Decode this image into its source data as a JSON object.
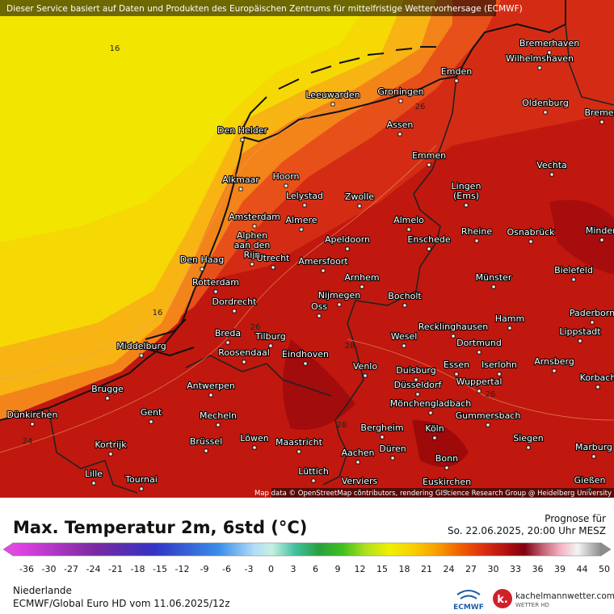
{
  "header": {
    "notice": "Dieser Service basiert auf Daten und Produkten des Europäischen Zentrums für mittelfristige Wettervorhersage (ECMWF)"
  },
  "map": {
    "cities": [
      "Bremerhaven",
      "Wilhelmshaven",
      "Emden",
      "Leeuwarden",
      "Groningen",
      "Oldenburg",
      "Bremen",
      "Assen",
      "Den Helder",
      "Emmen",
      "Vechta",
      "Alkmaar",
      "Hoorn",
      [
        "Lingen",
        "(Ems)"
      ],
      "Lelystad",
      "Zwolle",
      "Amsterdam",
      "Almere",
      "Almelo",
      "Rheine",
      "Osnabrück",
      "Minden",
      [
        "Alphen",
        "aan den",
        "Rijn"
      ],
      "Apeldoorn",
      "Enschede",
      "Den Haag",
      "Utrecht",
      "Amersfoort",
      "Bielefeld",
      "Arnhem",
      "Münster",
      "Rotterdam",
      "Nijmegen",
      "Bocholt",
      "Dordrecht",
      "Oss",
      "Hamm",
      "Paderborn",
      "Recklinghausen",
      "Breda",
      "Tilburg",
      "Wesel",
      "Lippstadt",
      "Middelburg",
      "Eindhoven",
      "Dortmund",
      "Roosendaal",
      "Venlo",
      "Essen",
      "Iserlohn",
      "Arnsberg",
      "Duisburg",
      "Korbach",
      "Antwerpen",
      "Wuppertal",
      "Düsseldorf",
      "Brugge",
      "Mönchengladbach",
      "Gent",
      "Mecheln",
      "Gummersbach",
      "Dünkirchen",
      "Bergheim",
      "Köln",
      "Brüssel",
      "Löwen",
      "Maastricht",
      "Siegen",
      "Kortrijk",
      "Düren",
      "Marburg",
      "Aachen",
      "Bonn",
      "Lille",
      "Tournai",
      "Lüttich",
      "Gießen",
      "Verviers",
      "Euskirchen"
    ],
    "contour_labels": [
      "16",
      "16",
      "24",
      "26",
      "26",
      "28",
      "26",
      "28"
    ],
    "attribution": "Map data © OpenStreetMap contributors, rendering GIScience Research Group @ Heidelberg University"
  },
  "legend": {
    "title": "Max. Temperatur 2m, 6std (°C)",
    "forecast_label": "Prognose für",
    "forecast_time": "So. 22.06.2025, 20:00 Uhr MESZ",
    "ticks": [
      -36,
      -30,
      -27,
      -24,
      -21,
      -18,
      -15,
      -12,
      -9,
      -6,
      -3,
      0,
      3,
      6,
      9,
      12,
      15,
      18,
      21,
      24,
      27,
      30,
      33,
      36,
      39,
      44,
      50
    ]
  },
  "footer": {
    "region": "Niederlande",
    "model": "ECMWF/Global Euro HD vom 11.06.2025/12z",
    "ecmwf_logo": "ECMWF",
    "brand": "kachelmannwetter.com",
    "brand_sub": "WETTER HD"
  }
}
